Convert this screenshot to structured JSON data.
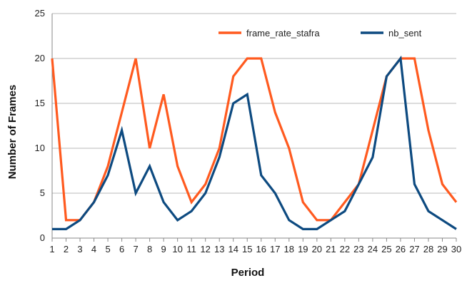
{
  "chart_data": {
    "type": "line",
    "title": "",
    "xlabel": "Period",
    "ylabel": "Number of Frames",
    "x": [
      1,
      2,
      3,
      4,
      5,
      6,
      7,
      8,
      9,
      10,
      11,
      12,
      13,
      14,
      15,
      16,
      17,
      18,
      19,
      20,
      21,
      22,
      23,
      24,
      25,
      26,
      27,
      28,
      29,
      30
    ],
    "ylim": [
      0,
      25
    ],
    "yticks": [
      0,
      5,
      10,
      15,
      20,
      25
    ],
    "grid": "horizontal",
    "legend_position": "top-right",
    "series": [
      {
        "name": "frame_rate_stafra",
        "color": "#ff5a1f",
        "values": [
          20,
          2,
          2,
          4,
          8,
          14,
          20,
          10,
          16,
          8,
          4,
          6,
          10,
          18,
          20,
          20,
          14,
          10,
          4,
          2,
          2,
          4,
          6,
          12,
          18,
          20,
          20,
          12,
          6,
          4
        ]
      },
      {
        "name": "nb_sent",
        "color": "#0d4a80",
        "values": [
          1,
          1,
          2,
          4,
          7,
          12,
          5,
          8,
          4,
          2,
          3,
          5,
          9,
          15,
          16,
          7,
          5,
          2,
          1,
          1,
          2,
          3,
          6,
          9,
          18,
          20,
          6,
          3,
          2,
          1
        ]
      }
    ]
  }
}
